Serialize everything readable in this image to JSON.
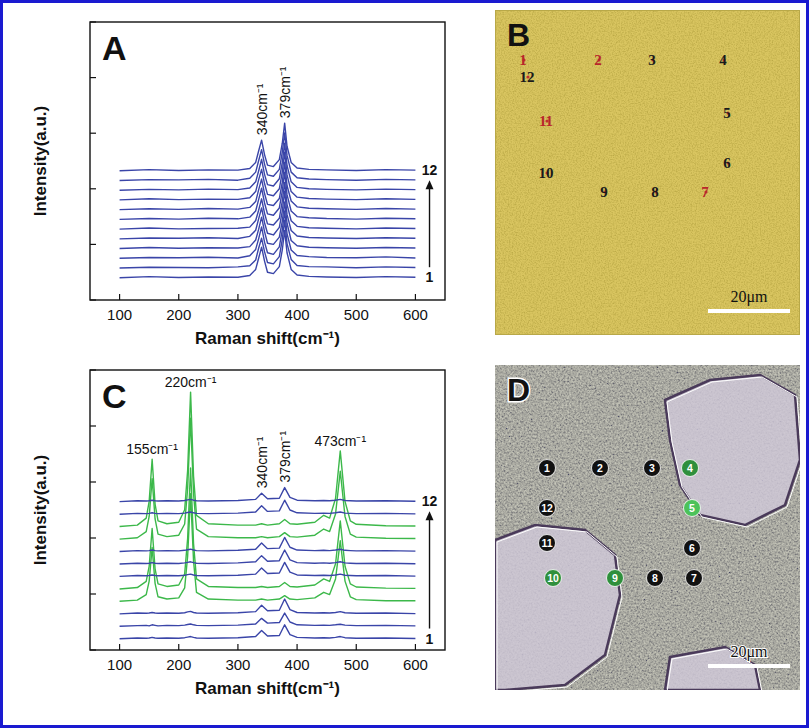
{
  "chart_data": [
    {
      "type": "line",
      "panel_label": "A",
      "xlabel": "Raman shift(cm⁻¹)",
      "ylabel": "Intensity(a.u.)",
      "xlim": [
        50,
        650
      ],
      "ylim": [
        0,
        100
      ],
      "xticks": [
        100,
        200,
        300,
        400,
        500,
        600
      ],
      "yticks": [
        0,
        20,
        40,
        60,
        80,
        100
      ],
      "tick_labels": "x",
      "annotations": [
        {
          "text": "340cm⁻¹",
          "x": 340
        },
        {
          "text": "379cm⁻¹",
          "x": 379
        }
      ],
      "x": [
        100,
        150,
        200,
        250,
        300,
        320,
        330,
        335,
        340,
        345,
        350,
        360,
        370,
        375,
        379,
        383,
        390,
        400,
        420,
        450,
        500,
        550,
        600
      ],
      "series": [
        {
          "name": "1",
          "color": "#3a45a8",
          "values": [
            8,
            8.4,
            8.1,
            8.3,
            8.2,
            8.8,
            11,
            15,
            19,
            14,
            10,
            9.5,
            12,
            18,
            25,
            17,
            11,
            9,
            8.5,
            8.3,
            8.1,
            8.4,
            8.2
          ]
        },
        {
          "color": "#3a45a8",
          "values": [
            11.5,
            11.8,
            11.7,
            11.6,
            11.9,
            12.3,
            14.4,
            18.6,
            22.2,
            17.4,
            13.5,
            13,
            15.6,
            21.8,
            28.7,
            20.3,
            14.6,
            12.4,
            12,
            11.9,
            11.6,
            11.9,
            11.7
          ]
        },
        {
          "color": "#3a45a8",
          "values": [
            15,
            15.3,
            15.2,
            15.4,
            15.1,
            15.9,
            18.2,
            22,
            26.3,
            20.8,
            17,
            16.4,
            19.1,
            25.2,
            32,
            23.9,
            18,
            16,
            15.6,
            15.3,
            15.2,
            15.5,
            15.1
          ]
        },
        {
          "color": "#3a45a8",
          "values": [
            18.5,
            18.9,
            18.6,
            18.8,
            18.7,
            19.2,
            21.6,
            25.4,
            29.8,
            24.6,
            20.4,
            20,
            22.6,
            28.4,
            35.3,
            27.6,
            21.4,
            19.5,
            19,
            18.8,
            18.6,
            18.9,
            18.7
          ]
        },
        {
          "color": "#3a45a8",
          "values": [
            22,
            22.3,
            22.2,
            22.4,
            22.1,
            22.9,
            25.1,
            29.2,
            33.1,
            27.8,
            24,
            23.4,
            26.1,
            32,
            39.1,
            30.8,
            25,
            23,
            22.5,
            22.3,
            22.1,
            22.4,
            22.2
          ]
        },
        {
          "color": "#3a45a8",
          "values": [
            25.5,
            25.9,
            25.6,
            25.7,
            25.8,
            26.2,
            28.6,
            32.3,
            36.4,
            31.2,
            27.4,
            27,
            29.4,
            35.6,
            42.3,
            34.4,
            28.5,
            26.5,
            26,
            25.8,
            25.6,
            25.9,
            25.7
          ]
        },
        {
          "color": "#3a45a8",
          "values": [
            29,
            29.3,
            29.1,
            29.4,
            29.2,
            29.8,
            32,
            36.1,
            40.2,
            34.9,
            31,
            30.5,
            33.1,
            39.2,
            46,
            37.9,
            32,
            30,
            29.6,
            29.3,
            29.1,
            29.4,
            29.2
          ]
        },
        {
          "color": "#3a45a8",
          "values": [
            32.5,
            32.8,
            32.6,
            32.9,
            32.7,
            33.3,
            35.4,
            39.6,
            43.5,
            38.3,
            34.4,
            34,
            36.5,
            42.4,
            49.6,
            41.2,
            35.6,
            33.5,
            33,
            32.8,
            32.6,
            32.9,
            32.7
          ]
        },
        {
          "color": "#3a45a8",
          "values": [
            36,
            36.4,
            36.1,
            36.3,
            36.2,
            36.8,
            39,
            43.2,
            47,
            41.9,
            38,
            37.5,
            40,
            46.1,
            53.2,
            45,
            39,
            37,
            36.5,
            36.3,
            36.1,
            36.4,
            36.2
          ]
        },
        {
          "color": "#3a45a8",
          "values": [
            39.5,
            39.8,
            39.6,
            39.9,
            39.7,
            40.3,
            42.5,
            46.4,
            50.6,
            45.2,
            41.5,
            41,
            43.6,
            49.5,
            56.4,
            48.4,
            42.5,
            40.5,
            40,
            39.8,
            39.6,
            39.9,
            39.7
          ]
        },
        {
          "color": "#3a45a8",
          "values": [
            43,
            43.3,
            43.2,
            43.4,
            43.1,
            43.8,
            46,
            50.1,
            54.1,
            48.9,
            45,
            44.5,
            47,
            53.2,
            60.1,
            52,
            46,
            44,
            43.5,
            43.3,
            43.1,
            43.4,
            43.2
          ]
        },
        {
          "name": "12",
          "color": "#3a45a8",
          "values": [
            46.5,
            46.9,
            46.6,
            46.8,
            46.7,
            47.3,
            49.5,
            53.6,
            57.5,
            52.3,
            48.5,
            48,
            50.5,
            56.4,
            63.6,
            55.3,
            49.5,
            47.5,
            47,
            46.8,
            46.6,
            46.9,
            46.7
          ]
        }
      ]
    },
    {
      "type": "line",
      "panel_label": "C",
      "xlabel": "Raman shift(cm⁻¹)",
      "ylabel": "Intensity(a.u.)",
      "xlim": [
        50,
        650
      ],
      "ylim": [
        0,
        100
      ],
      "xticks": [
        100,
        200,
        300,
        400,
        500,
        600
      ],
      "yticks": [
        0,
        20,
        40,
        60,
        80,
        100
      ],
      "tick_labels": "x",
      "annotations": [
        {
          "text": "155cm⁻¹",
          "x": 155
        },
        {
          "text": "220cm⁻¹",
          "x": 220
        },
        {
          "text": "340cm⁻¹",
          "x": 340
        },
        {
          "text": "379cm⁻¹",
          "x": 379
        },
        {
          "text": "473cm⁻¹",
          "x": 473
        }
      ],
      "x": [
        100,
        130,
        145,
        150,
        155,
        160,
        165,
        180,
        200,
        210,
        215,
        220,
        225,
        230,
        250,
        300,
        330,
        340,
        350,
        370,
        379,
        388,
        400,
        430,
        445,
        455,
        465,
        473,
        481,
        490,
        500,
        550,
        600
      ],
      "series": [
        {
          "name": "1",
          "color": "#3a45a8",
          "values": [
            4,
            4.3,
            4.2,
            4.3,
            4.5,
            4.3,
            4.2,
            4.3,
            4.2,
            4.4,
            4.6,
            4.8,
            4.5,
            4.3,
            4.2,
            4.4,
            4.8,
            7,
            5,
            5.2,
            9,
            5.5,
            4.5,
            4.3,
            4.4,
            4.3,
            4.5,
            4.8,
            4.4,
            4.3,
            4.2,
            4.3,
            4.1
          ]
        },
        {
          "color": "#3a45a8",
          "values": [
            8.5,
            8.7,
            8.8,
            8.6,
            9,
            8.8,
            8.6,
            8.8,
            8.7,
            8.9,
            9.1,
            9.3,
            9,
            8.8,
            8.7,
            8.9,
            9.3,
            11.3,
            9.6,
            9.8,
            13.2,
            10,
            9,
            8.8,
            8.9,
            8.8,
            9,
            9.2,
            8.9,
            8.8,
            8.7,
            8.8,
            8.6
          ]
        },
        {
          "color": "#3a45a8",
          "values": [
            12.9,
            13.2,
            13.1,
            13.2,
            13.4,
            13.2,
            13.1,
            13.2,
            13.1,
            13.3,
            13.6,
            13.8,
            13.4,
            13.2,
            13.1,
            13.3,
            13.7,
            16,
            14,
            14.2,
            18.2,
            14.4,
            13.4,
            13.2,
            13.3,
            13.2,
            13.4,
            13.7,
            13.3,
            13.2,
            13.1,
            13.2,
            13
          ]
        },
        {
          "color": "#3cb84a",
          "values": [
            17.4,
            17.8,
            19.8,
            24.6,
            36.6,
            23.8,
            19,
            18.2,
            18.6,
            22.2,
            33.4,
            55.8,
            31.8,
            20.6,
            18.2,
            17.8,
            17.8,
            18.2,
            17.8,
            18.2,
            19.4,
            18.2,
            18,
            18.6,
            20.6,
            19.8,
            25.4,
            39,
            24.6,
            19,
            18,
            17.6,
            17.6
          ]
        },
        {
          "color": "#3cb84a",
          "values": [
            21.8,
            22.3,
            24.5,
            29.9,
            43.4,
            29,
            23.6,
            22.7,
            23.2,
            27.2,
            39.8,
            65,
            38,
            25.4,
            22.7,
            22.3,
            22.3,
            22.7,
            22.3,
            22.7,
            24.1,
            22.7,
            22.5,
            23.2,
            25.4,
            24.5,
            30.8,
            46.1,
            29.9,
            23.6,
            22.5,
            22.1,
            22
          ]
        },
        {
          "color": "#3a45a8",
          "values": [
            26.3,
            26.6,
            26.5,
            26.6,
            26.8,
            26.6,
            26.5,
            26.6,
            26.5,
            26.7,
            26.9,
            27.1,
            26.8,
            26.6,
            26.5,
            26.7,
            27.1,
            29.3,
            27.3,
            27.5,
            31.3,
            27.8,
            26.8,
            26.6,
            26.7,
            26.6,
            26.8,
            27.1,
            26.7,
            26.6,
            26.5,
            26.6,
            26.4
          ]
        },
        {
          "color": "#3a45a8",
          "values": [
            30.7,
            31,
            30.9,
            31,
            31.2,
            31,
            30.9,
            31,
            30.9,
            31.1,
            31.3,
            31.5,
            31.2,
            31,
            30.9,
            31.1,
            31.5,
            33.7,
            31.7,
            31.9,
            35.7,
            32.2,
            31.2,
            31,
            31.1,
            31,
            31.2,
            31.5,
            31.1,
            31,
            30.9,
            31,
            30.8
          ]
        },
        {
          "color": "#3a45a8",
          "values": [
            35.2,
            35.5,
            35.4,
            35.5,
            35.7,
            35.5,
            35.4,
            35.5,
            35.4,
            35.6,
            35.8,
            36,
            35.7,
            35.5,
            35.4,
            35.6,
            36,
            38.2,
            36.2,
            36.4,
            40.2,
            36.7,
            35.7,
            35.5,
            35.6,
            35.5,
            35.7,
            36,
            35.6,
            35.5,
            35.4,
            35.5,
            35.3
          ]
        },
        {
          "color": "#3cb84a",
          "values": [
            39.6,
            40.1,
            42.3,
            47.7,
            61.2,
            46.8,
            41.4,
            40.5,
            41,
            45,
            57.6,
            82.8,
            55.8,
            43.2,
            40.5,
            40.1,
            40.1,
            40.5,
            40.1,
            40.5,
            41.9,
            40.5,
            40.3,
            41,
            43.2,
            42.3,
            48.6,
            63.9,
            47.7,
            41.4,
            40.3,
            39.9,
            39.8
          ]
        },
        {
          "color": "#3cb84a",
          "values": [
            44.1,
            44.6,
            47.1,
            53.1,
            68.1,
            52.1,
            46.1,
            45.1,
            45.6,
            50.1,
            64.1,
            92.1,
            62.1,
            48.1,
            45.1,
            44.6,
            44.6,
            45.1,
            44.6,
            45.1,
            46.6,
            45.1,
            44.9,
            45.6,
            48.1,
            47.1,
            54.1,
            71.1,
            53.1,
            46.1,
            44.9,
            44.4,
            44.3
          ]
        },
        {
          "color": "#3a45a8",
          "values": [
            48.5,
            48.8,
            48.7,
            48.8,
            49,
            48.8,
            48.7,
            48.8,
            48.7,
            48.9,
            49.1,
            49.3,
            49,
            48.8,
            48.7,
            48.9,
            49.3,
            51.5,
            49.5,
            49.7,
            53.5,
            50,
            49,
            48.8,
            48.9,
            48.8,
            49,
            49.3,
            48.9,
            48.8,
            48.7,
            48.8,
            48.6
          ]
        },
        {
          "name": "12",
          "color": "#3a45a8",
          "values": [
            53,
            53.3,
            53.2,
            53.3,
            53.5,
            53.3,
            53.2,
            53.3,
            53.2,
            53.4,
            53.6,
            53.8,
            53.5,
            53.3,
            53.2,
            53.4,
            53.8,
            56,
            54,
            54.2,
            58,
            54.5,
            53.5,
            53.3,
            53.4,
            53.3,
            53.5,
            53.8,
            53.4,
            53.3,
            53.2,
            53.3,
            53.1
          ]
        }
      ]
    }
  ],
  "images": [
    {
      "panel_label": "B",
      "scale_bar": "20μm",
      "points": [
        {
          "label": "1",
          "color": "#b8262a"
        },
        {
          "label": "2",
          "color": "#b8262a"
        },
        {
          "label": "3",
          "color": "#1a1a1a"
        },
        {
          "label": "4",
          "color": "#1a1a1a"
        },
        {
          "label": "5",
          "color": "#1a1a1a"
        },
        {
          "label": "6",
          "color": "#1a1a1a"
        },
        {
          "label": "7",
          "color": "#b8262a"
        },
        {
          "label": "8",
          "color": "#1a1a1a"
        },
        {
          "label": "9",
          "color": "#1a1a1a"
        },
        {
          "label": "10",
          "color": "#1a1a1a"
        },
        {
          "label": "11",
          "color": "#b8262a"
        },
        {
          "label": "12",
          "color": "#1a1a1a"
        }
      ]
    },
    {
      "panel_label": "D",
      "scale_bar": "20μm",
      "points": [
        {
          "label": "1",
          "color": "#111111"
        },
        {
          "label": "2",
          "color": "#111111"
        },
        {
          "label": "3",
          "color": "#111111"
        },
        {
          "label": "4",
          "color": "#2f8f3c"
        },
        {
          "label": "5",
          "color": "#4cc25a"
        },
        {
          "label": "6",
          "color": "#111111"
        },
        {
          "label": "7",
          "color": "#111111"
        },
        {
          "label": "8",
          "color": "#111111"
        },
        {
          "label": "9",
          "color": "#2f8f3c"
        },
        {
          "label": "10",
          "color": "#2f8f3c"
        },
        {
          "label": "11",
          "color": "#111111"
        },
        {
          "label": "12",
          "color": "#111111"
        }
      ]
    }
  ]
}
